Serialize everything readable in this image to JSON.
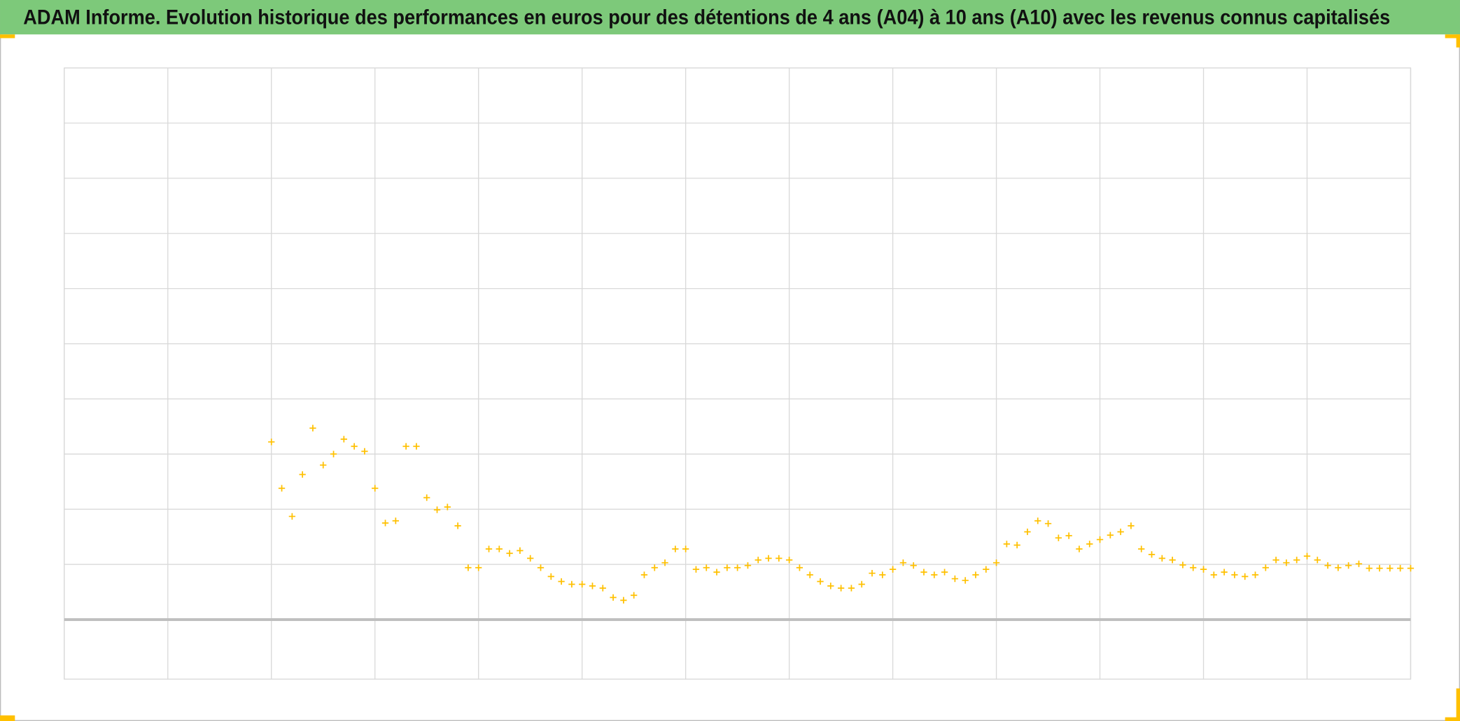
{
  "chart_data": {
    "type": "scatter",
    "title": "ADAM Informe. Evolution historique des performances en euros pour des détentions de 4 ans (A04) à 10 ans (A10) avec les revenus connus capitalisés",
    "xlim": [
      0,
      13
    ],
    "xticks": [
      0,
      1,
      2,
      3,
      4,
      5,
      6,
      7,
      8,
      9,
      10,
      11,
      12,
      13
    ],
    "ylim": [
      -1.08,
      10
    ],
    "yticks": [
      0,
      1,
      2,
      3,
      4,
      5,
      6,
      7,
      8,
      9,
      10
    ],
    "grid": true,
    "series": [
      {
        "color": "#ffc000",
        "x": [
          2.0,
          2.1,
          2.2,
          2.3,
          2.4,
          2.5,
          2.6,
          2.7,
          2.8,
          2.9,
          3.0,
          3.1,
          3.2,
          3.3,
          3.4,
          3.5,
          3.6,
          3.7,
          3.8,
          3.9,
          4.0,
          4.1,
          4.2,
          4.3,
          4.4,
          4.5,
          4.6,
          4.7,
          4.8,
          4.9,
          5.0,
          5.1,
          5.2,
          5.3,
          5.4,
          5.5,
          5.6,
          5.7,
          5.8,
          5.9,
          6.0,
          6.1,
          6.2,
          6.3,
          6.4,
          6.5,
          6.6,
          6.7,
          6.8,
          6.9,
          7.0,
          7.1,
          7.2,
          7.3,
          7.4,
          7.5,
          7.6,
          7.7,
          7.8,
          7.9,
          8.0,
          8.1,
          8.2,
          8.3,
          8.4,
          8.5,
          8.6,
          8.7,
          8.8,
          8.9,
          9.0,
          9.1,
          9.2,
          9.3,
          9.4,
          9.5,
          9.6,
          9.7,
          9.8,
          9.9,
          10.0,
          10.1,
          10.2,
          10.3,
          10.4,
          10.5,
          10.6,
          10.7,
          10.8,
          10.9,
          11.0,
          11.1,
          11.2,
          11.3,
          11.4,
          11.5,
          11.6,
          11.7,
          11.8,
          11.9,
          12.0,
          12.1,
          12.2,
          12.3,
          12.4,
          12.5,
          12.6,
          12.7,
          12.8,
          12.9,
          13.0
        ],
        "values": [
          3.22,
          2.38,
          1.87,
          2.63,
          3.47,
          2.8,
          3.0,
          3.27,
          3.14,
          3.05,
          2.38,
          1.75,
          1.79,
          3.14,
          3.14,
          2.21,
          1.99,
          2.04,
          1.7,
          0.94,
          0.94,
          1.28,
          1.28,
          1.2,
          1.25,
          1.11,
          0.94,
          0.78,
          0.69,
          0.64,
          0.64,
          0.61,
          0.57,
          0.4,
          0.35,
          0.44,
          0.81,
          0.94,
          1.03,
          1.28,
          1.28,
          0.91,
          0.94,
          0.86,
          0.94,
          0.94,
          0.98,
          1.08,
          1.11,
          1.11,
          1.08,
          0.94,
          0.81,
          0.69,
          0.61,
          0.57,
          0.57,
          0.64,
          0.84,
          0.81,
          0.91,
          1.03,
          0.98,
          0.86,
          0.81,
          0.86,
          0.74,
          0.71,
          0.81,
          0.91,
          1.03,
          1.37,
          1.35,
          1.59,
          1.79,
          1.74,
          1.48,
          1.52,
          1.28,
          1.37,
          1.45,
          1.53,
          1.59,
          1.7,
          1.28,
          1.18,
          1.11,
          1.08,
          0.99,
          0.94,
          0.91,
          0.81,
          0.86,
          0.81,
          0.78,
          0.81,
          0.94,
          1.08,
          1.03,
          1.08,
          1.15,
          1.08,
          0.98,
          0.94,
          0.98,
          1.01,
          0.93,
          0.93,
          0.93,
          0.93,
          0.93
        ]
      }
    ]
  }
}
